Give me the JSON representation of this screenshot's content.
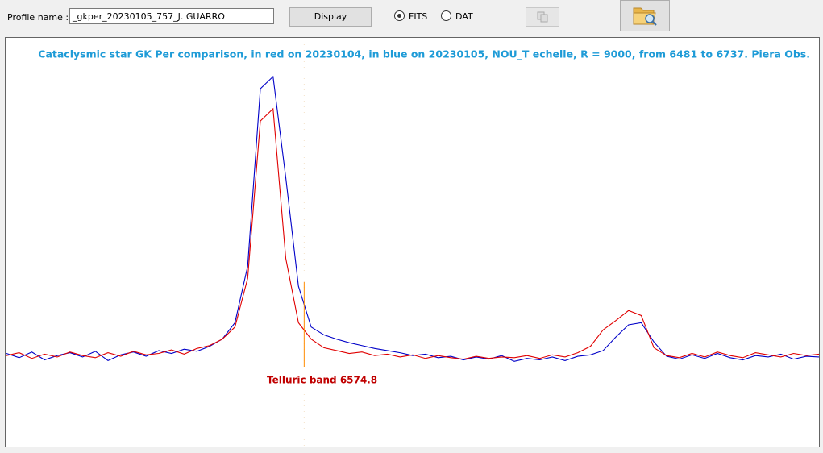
{
  "toolbar": {
    "profile_label": "Profile name :",
    "profile_name": "_gkper_20230105_757_J. GUARRO",
    "display_button": "Display",
    "radios": [
      {
        "label": "FITS",
        "checked": true
      },
      {
        "label": "DAT",
        "checked": false
      }
    ]
  },
  "chart_data": {
    "type": "line",
    "title": "Cataclysmic star GK Per comparison, in red on 20230104, in blue on 20230105, NOU_T echelle, R = 9000, from 6481 to 6737.  Piera Obs.",
    "annotation": {
      "text": "Telluric band 6574.8",
      "x": 6574.8,
      "color": "#ff8c00"
    },
    "xlim": [
      6481,
      6737
    ],
    "ylim": [
      -0.27,
      5.42
    ],
    "x": [
      6481,
      6485,
      6489,
      6493,
      6497,
      6501,
      6505,
      6509,
      6513,
      6517,
      6521,
      6525,
      6529,
      6533,
      6537,
      6541,
      6545,
      6549,
      6553,
      6557,
      6561,
      6565,
      6569,
      6573,
      6577,
      6581,
      6585,
      6589,
      6593,
      6597,
      6601,
      6605,
      6609,
      6613,
      6617,
      6621,
      6625,
      6629,
      6633,
      6637,
      6641,
      6645,
      6649,
      6653,
      6657,
      6661,
      6665,
      6669,
      6673,
      6677,
      6681,
      6685,
      6689,
      6693,
      6697,
      6701,
      6705,
      6709,
      6713,
      6717,
      6721,
      6725,
      6729,
      6733,
      6737
    ],
    "series": [
      {
        "color": "#0000c8",
        "values": [
          1.02,
          0.96,
          1.04,
          0.93,
          0.99,
          1.03,
          0.97,
          1.05,
          0.92,
          1.0,
          1.04,
          0.98,
          1.06,
          1.02,
          1.08,
          1.05,
          1.12,
          1.22,
          1.45,
          2.24,
          4.72,
          4.89,
          3.48,
          1.96,
          1.39,
          1.28,
          1.22,
          1.17,
          1.13,
          1.09,
          1.06,
          1.03,
          0.99,
          1.01,
          0.96,
          0.98,
          0.93,
          0.97,
          0.94,
          0.99,
          0.91,
          0.95,
          0.93,
          0.97,
          0.92,
          0.98,
          1.0,
          1.06,
          1.25,
          1.42,
          1.45,
          1.18,
          0.98,
          0.94,
          1.0,
          0.95,
          1.02,
          0.96,
          0.93,
          0.99,
          0.97,
          1.01,
          0.94,
          0.98,
          0.97
        ]
      },
      {
        "color": "#e00000",
        "values": [
          0.99,
          1.03,
          0.95,
          1.01,
          0.97,
          1.04,
          0.99,
          0.96,
          1.03,
          0.98,
          1.05,
          1.0,
          1.02,
          1.07,
          1.01,
          1.09,
          1.13,
          1.22,
          1.39,
          2.07,
          4.27,
          4.44,
          2.35,
          1.45,
          1.22,
          1.1,
          1.06,
          1.02,
          1.04,
          0.99,
          1.01,
          0.97,
          1.0,
          0.95,
          0.99,
          0.96,
          0.94,
          0.98,
          0.95,
          0.97,
          0.96,
          0.99,
          0.95,
          1.0,
          0.97,
          1.03,
          1.12,
          1.35,
          1.48,
          1.62,
          1.55,
          1.1,
          0.99,
          0.96,
          1.02,
          0.97,
          1.04,
          0.99,
          0.96,
          1.03,
          1.0,
          0.97,
          1.02,
          0.99,
          1.01
        ]
      }
    ]
  }
}
